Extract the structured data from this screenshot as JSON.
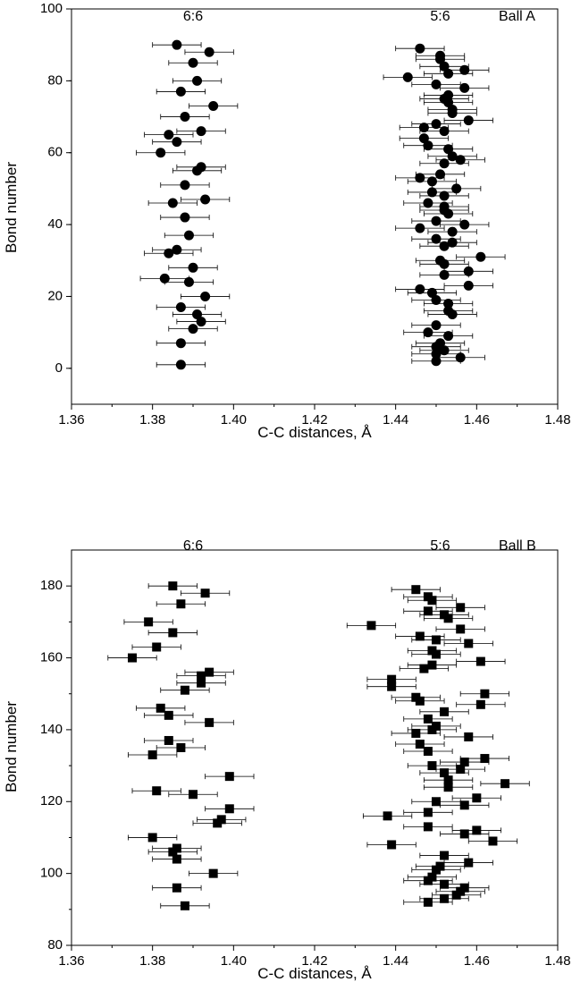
{
  "chart_data": [
    {
      "type": "scatter",
      "marker": "circle",
      "title": "Ball A",
      "xlabel": "C-C distances, Å",
      "ylabel": "Bond number",
      "xlim": [
        1.36,
        1.48
      ],
      "ylim": [
        -10,
        100
      ],
      "x_ticks": [
        1.36,
        1.38,
        1.4,
        1.42,
        1.44,
        1.46,
        1.48
      ],
      "y_ticks": [
        0,
        20,
        40,
        60,
        80,
        100
      ],
      "group_labels": [
        {
          "text": "6:6",
          "x": 1.39
        },
        {
          "text": "5:6",
          "x": 1.451
        }
      ],
      "error_bar_halfwidth": 0.006,
      "points": [
        [
          1.386,
          90
        ],
        [
          1.394,
          88
        ],
        [
          1.39,
          85
        ],
        [
          1.391,
          80
        ],
        [
          1.387,
          77
        ],
        [
          1.395,
          73
        ],
        [
          1.388,
          70
        ],
        [
          1.392,
          66
        ],
        [
          1.384,
          65
        ],
        [
          1.386,
          63
        ],
        [
          1.382,
          60
        ],
        [
          1.392,
          56
        ],
        [
          1.391,
          55
        ],
        [
          1.388,
          51
        ],
        [
          1.393,
          47
        ],
        [
          1.385,
          46
        ],
        [
          1.388,
          42
        ],
        [
          1.389,
          37
        ],
        [
          1.386,
          33
        ],
        [
          1.384,
          32
        ],
        [
          1.39,
          28
        ],
        [
          1.383,
          25
        ],
        [
          1.389,
          24
        ],
        [
          1.393,
          20
        ],
        [
          1.387,
          17
        ],
        [
          1.391,
          15
        ],
        [
          1.392,
          13
        ],
        [
          1.39,
          11
        ],
        [
          1.387,
          7
        ],
        [
          1.387,
          1
        ],
        [
          1.446,
          89
        ],
        [
          1.451,
          87
        ],
        [
          1.451,
          86
        ],
        [
          1.452,
          84
        ],
        [
          1.457,
          83
        ],
        [
          1.453,
          82
        ],
        [
          1.443,
          81
        ],
        [
          1.45,
          79
        ],
        [
          1.457,
          78
        ],
        [
          1.453,
          76
        ],
        [
          1.452,
          75
        ],
        [
          1.453,
          74
        ],
        [
          1.454,
          72
        ],
        [
          1.454,
          71
        ],
        [
          1.458,
          69
        ],
        [
          1.45,
          68
        ],
        [
          1.447,
          67
        ],
        [
          1.452,
          66
        ],
        [
          1.447,
          64
        ],
        [
          1.448,
          62
        ],
        [
          1.453,
          61
        ],
        [
          1.454,
          59
        ],
        [
          1.456,
          58
        ],
        [
          1.452,
          57
        ],
        [
          1.451,
          54
        ],
        [
          1.446,
          53
        ],
        [
          1.449,
          52
        ],
        [
          1.455,
          50
        ],
        [
          1.449,
          49
        ],
        [
          1.452,
          48
        ],
        [
          1.448,
          46
        ],
        [
          1.452,
          45
        ],
        [
          1.452,
          44
        ],
        [
          1.453,
          43
        ],
        [
          1.45,
          41
        ],
        [
          1.457,
          40
        ],
        [
          1.446,
          39
        ],
        [
          1.454,
          38
        ],
        [
          1.45,
          36
        ],
        [
          1.454,
          35
        ],
        [
          1.452,
          34
        ],
        [
          1.461,
          31
        ],
        [
          1.451,
          30
        ],
        [
          1.452,
          29
        ],
        [
          1.458,
          27
        ],
        [
          1.452,
          26
        ],
        [
          1.458,
          23
        ],
        [
          1.446,
          22
        ],
        [
          1.449,
          21
        ],
        [
          1.45,
          19
        ],
        [
          1.453,
          18
        ],
        [
          1.453,
          16
        ],
        [
          1.454,
          15
        ],
        [
          1.45,
          12
        ],
        [
          1.448,
          10
        ],
        [
          1.453,
          9
        ],
        [
          1.451,
          7
        ],
        [
          1.45,
          6
        ],
        [
          1.452,
          5
        ],
        [
          1.45,
          4
        ],
        [
          1.456,
          3
        ],
        [
          1.45,
          2
        ]
      ]
    },
    {
      "type": "scatter",
      "marker": "square",
      "title": "Ball B",
      "xlabel": "C-C distances, Å",
      "ylabel": "Bond number",
      "xlim": [
        1.36,
        1.48
      ],
      "ylim": [
        80,
        190
      ],
      "x_ticks": [
        1.36,
        1.38,
        1.4,
        1.42,
        1.44,
        1.46,
        1.48
      ],
      "y_ticks": [
        80,
        100,
        120,
        140,
        160,
        180
      ],
      "group_labels": [
        {
          "text": "6:6",
          "x": 1.39
        },
        {
          "text": "5:6",
          "x": 1.451
        }
      ],
      "error_bar_halfwidth": 0.006,
      "points": [
        [
          1.385,
          180
        ],
        [
          1.393,
          178
        ],
        [
          1.387,
          175
        ],
        [
          1.379,
          170
        ],
        [
          1.385,
          167
        ],
        [
          1.381,
          163
        ],
        [
          1.375,
          160
        ],
        [
          1.394,
          156
        ],
        [
          1.392,
          155
        ],
        [
          1.392,
          153
        ],
        [
          1.388,
          151
        ],
        [
          1.382,
          146
        ],
        [
          1.384,
          144
        ],
        [
          1.394,
          142
        ],
        [
          1.384,
          137
        ],
        [
          1.387,
          135
        ],
        [
          1.38,
          133
        ],
        [
          1.399,
          127
        ],
        [
          1.381,
          123
        ],
        [
          1.39,
          122
        ],
        [
          1.399,
          118
        ],
        [
          1.397,
          115
        ],
        [
          1.396,
          114
        ],
        [
          1.38,
          110
        ],
        [
          1.386,
          107
        ],
        [
          1.385,
          106
        ],
        [
          1.386,
          104
        ],
        [
          1.395,
          100
        ],
        [
          1.386,
          96
        ],
        [
          1.388,
          91
        ],
        [
          1.445,
          179
        ],
        [
          1.448,
          177
        ],
        [
          1.449,
          176
        ],
        [
          1.456,
          174
        ],
        [
          1.448,
          173
        ],
        [
          1.452,
          172
        ],
        [
          1.453,
          171
        ],
        [
          1.434,
          169
        ],
        [
          1.456,
          168
        ],
        [
          1.446,
          166
        ],
        [
          1.45,
          165
        ],
        [
          1.458,
          164
        ],
        [
          1.449,
          162
        ],
        [
          1.45,
          161
        ],
        [
          1.461,
          159
        ],
        [
          1.449,
          158
        ],
        [
          1.447,
          157
        ],
        [
          1.439,
          154
        ],
        [
          1.439,
          152
        ],
        [
          1.462,
          150
        ],
        [
          1.445,
          149
        ],
        [
          1.446,
          148
        ],
        [
          1.461,
          147
        ],
        [
          1.452,
          145
        ],
        [
          1.448,
          143
        ],
        [
          1.45,
          141
        ],
        [
          1.449,
          140
        ],
        [
          1.445,
          139
        ],
        [
          1.458,
          138
        ],
        [
          1.446,
          136
        ],
        [
          1.448,
          134
        ],
        [
          1.457,
          131
        ],
        [
          1.462,
          132
        ],
        [
          1.456,
          129
        ],
        [
          1.449,
          130
        ],
        [
          1.452,
          128
        ],
        [
          1.453,
          126
        ],
        [
          1.467,
          125
        ],
        [
          1.453,
          124
        ],
        [
          1.46,
          121
        ],
        [
          1.45,
          120
        ],
        [
          1.457,
          119
        ],
        [
          1.448,
          117
        ],
        [
          1.438,
          116
        ],
        [
          1.448,
          113
        ],
        [
          1.46,
          112
        ],
        [
          1.457,
          111
        ],
        [
          1.464,
          109
        ],
        [
          1.439,
          108
        ],
        [
          1.452,
          105
        ],
        [
          1.458,
          103
        ],
        [
          1.451,
          102
        ],
        [
          1.45,
          101
        ],
        [
          1.449,
          99
        ],
        [
          1.448,
          98
        ],
        [
          1.452,
          97
        ],
        [
          1.456,
          95
        ],
        [
          1.457,
          96
        ],
        [
          1.455,
          94
        ],
        [
          1.452,
          93
        ],
        [
          1.448,
          92
        ]
      ]
    }
  ]
}
